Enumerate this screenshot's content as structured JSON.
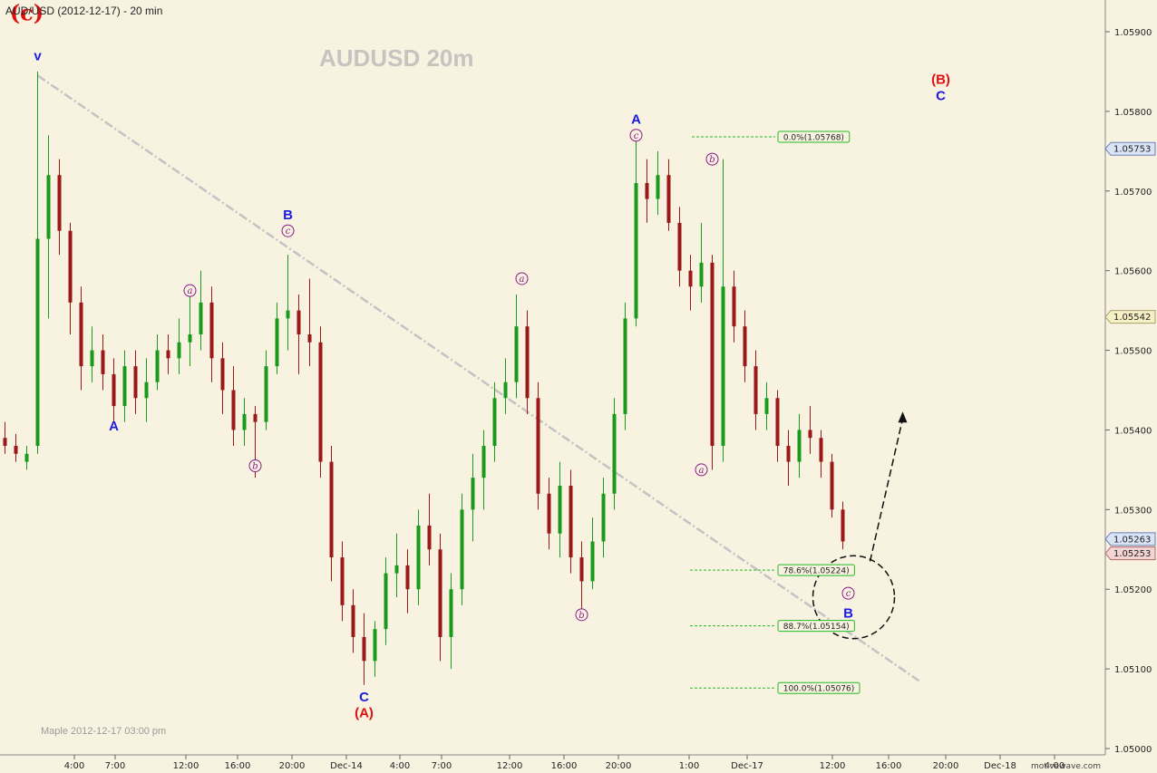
{
  "header": {
    "title": "AUD/USD (2012-12-17) - 20 min"
  },
  "watermark": "AUDUSD  20m",
  "footer_note": "Maple  2012-12-17  03:00 pm",
  "brand": "motivewave.com",
  "colors": {
    "background": "#f8f2e1",
    "bull": "#1a9a1a",
    "bear": "#9a1818",
    "trendline": "#c3c3c3",
    "fib": "#22bb22",
    "wave_blue": "#1c1ce0",
    "wave_red": "#e01010",
    "wave_purple": "#8b1a89"
  },
  "chart_data": {
    "type": "candlestick",
    "instrument": "AUD/USD",
    "timeframe": "20 min",
    "ylim": [
      1.05,
      1.0595
    ],
    "y_ticks": [
      "1.05900",
      "1.05800",
      "1.05700",
      "1.05600",
      "1.05500",
      "1.05400",
      "1.05300",
      "1.05200",
      "1.05100",
      "1.05000"
    ],
    "x_ticks": [
      "4:00",
      "7:00",
      "12:00",
      "16:00",
      "20:00",
      "Dec-14",
      "4:00",
      "7:00",
      "12:00",
      "16:00",
      "20:00",
      "1:00",
      "Dec-17",
      "12:00",
      "16:00",
      "20:00",
      "Dec-18",
      "4:00"
    ],
    "price_tags": [
      {
        "label": "1.05753",
        "value": 1.05753,
        "style": "blue"
      },
      {
        "label": "1.05542",
        "value": 1.05542,
        "style": "yellow"
      },
      {
        "label": "1.05263",
        "value": 1.05263,
        "style": "blue"
      },
      {
        "label": "1.05253",
        "value": 1.05253,
        "style": "red"
      }
    ],
    "fib_levels": [
      {
        "label": "0.0%(1.05768)",
        "value": 1.05768
      },
      {
        "label": "78.6%(1.05224)",
        "value": 1.05224
      },
      {
        "label": "88.7%(1.05154)",
        "value": 1.05154
      },
      {
        "label": "100.0%(1.05076)",
        "value": 1.05076
      }
    ],
    "wave_labels": [
      {
        "text": "(c)",
        "style": "red-big",
        "x": 2,
        "y": 1.0592
      },
      {
        "text": "v",
        "style": "blue",
        "x": 3,
        "y": 1.0587
      },
      {
        "text": "A",
        "style": "blue",
        "x": 10,
        "y": 1.05405
      },
      {
        "text": "a",
        "style": "circle",
        "x": 17,
        "y": 1.05575
      },
      {
        "text": "b",
        "style": "circle",
        "x": 23,
        "y": 1.05355
      },
      {
        "text": "B",
        "style": "blue",
        "x": 26,
        "y": 1.0567
      },
      {
        "text": "c",
        "style": "circle",
        "x": 26,
        "y": 1.0565
      },
      {
        "text": "C",
        "style": "blue",
        "x": 33,
        "y": 1.05065
      },
      {
        "text": "(A)",
        "style": "red",
        "x": 33,
        "y": 1.05045
      },
      {
        "text": "a",
        "style": "circle",
        "x": 47.5,
        "y": 1.0559
      },
      {
        "text": "b",
        "style": "circle",
        "x": 53,
        "y": 1.05168
      },
      {
        "text": "A",
        "style": "blue",
        "x": 58,
        "y": 1.0579
      },
      {
        "text": "c",
        "style": "circle",
        "x": 58,
        "y": 1.0577
      },
      {
        "text": "b",
        "style": "circle",
        "x": 65,
        "y": 1.0574
      },
      {
        "text": "a",
        "style": "circle",
        "x": 64,
        "y": 1.0535
      },
      {
        "text": "(B)",
        "style": "red",
        "x": 86,
        "y": 1.0584
      },
      {
        "text": "C",
        "style": "blue",
        "x": 86,
        "y": 1.0582
      },
      {
        "text": "c",
        "style": "circle",
        "x": 77.5,
        "y": 1.05195
      },
      {
        "text": "B",
        "style": "blue",
        "x": 77.5,
        "y": 1.0517
      }
    ],
    "trendline": {
      "from": {
        "x": 3,
        "y": 1.05845
      },
      "to": {
        "x": 84,
        "y": 1.05085
      }
    },
    "projection_arrow": {
      "from": {
        "x": 79.5,
        "y": 1.05235
      },
      "to": {
        "x": 82.5,
        "y": 1.05423
      }
    },
    "target_circle": {
      "cx": 78,
      "cy": 1.0519,
      "rx": 3.75,
      "ry": 0.00052
    },
    "candles": [
      {
        "o": 1.0539,
        "h": 1.0541,
        "l": 1.0537,
        "c": 1.0538
      },
      {
        "o": 1.0538,
        "h": 1.05395,
        "l": 1.0536,
        "c": 1.0537
      },
      {
        "o": 1.0536,
        "h": 1.0538,
        "l": 1.0535,
        "c": 1.0537
      },
      {
        "o": 1.0538,
        "h": 1.0585,
        "l": 1.0537,
        "c": 1.0564
      },
      {
        "o": 1.0564,
        "h": 1.0577,
        "l": 1.0554,
        "c": 1.0572
      },
      {
        "o": 1.0572,
        "h": 1.0574,
        "l": 1.0562,
        "c": 1.0565
      },
      {
        "o": 1.0565,
        "h": 1.0566,
        "l": 1.0552,
        "c": 1.0556
      },
      {
        "o": 1.0556,
        "h": 1.0558,
        "l": 1.0545,
        "c": 1.0548
      },
      {
        "o": 1.0548,
        "h": 1.0553,
        "l": 1.0546,
        "c": 1.055
      },
      {
        "o": 1.055,
        "h": 1.0552,
        "l": 1.0545,
        "c": 1.0547
      },
      {
        "o": 1.0547,
        "h": 1.0549,
        "l": 1.0541,
        "c": 1.0543
      },
      {
        "o": 1.0543,
        "h": 1.055,
        "l": 1.0541,
        "c": 1.0548
      },
      {
        "o": 1.0548,
        "h": 1.055,
        "l": 1.0542,
        "c": 1.0544
      },
      {
        "o": 1.0544,
        "h": 1.0549,
        "l": 1.0541,
        "c": 1.0546
      },
      {
        "o": 1.0546,
        "h": 1.0552,
        "l": 1.0545,
        "c": 1.055
      },
      {
        "o": 1.055,
        "h": 1.0552,
        "l": 1.0547,
        "c": 1.0549
      },
      {
        "o": 1.0549,
        "h": 1.0554,
        "l": 1.0547,
        "c": 1.0551
      },
      {
        "o": 1.0551,
        "h": 1.0557,
        "l": 1.0548,
        "c": 1.0552
      },
      {
        "o": 1.0552,
        "h": 1.056,
        "l": 1.055,
        "c": 1.0556
      },
      {
        "o": 1.0556,
        "h": 1.0558,
        "l": 1.0546,
        "c": 1.0549
      },
      {
        "o": 1.0549,
        "h": 1.0551,
        "l": 1.0542,
        "c": 1.0545
      },
      {
        "o": 1.0545,
        "h": 1.0548,
        "l": 1.0538,
        "c": 1.054
      },
      {
        "o": 1.054,
        "h": 1.0544,
        "l": 1.0538,
        "c": 1.0542
      },
      {
        "o": 1.0542,
        "h": 1.0543,
        "l": 1.0534,
        "c": 1.0541
      },
      {
        "o": 1.0541,
        "h": 1.055,
        "l": 1.054,
        "c": 1.0548
      },
      {
        "o": 1.0548,
        "h": 1.0556,
        "l": 1.0547,
        "c": 1.0554
      },
      {
        "o": 1.0554,
        "h": 1.0562,
        "l": 1.055,
        "c": 1.0555
      },
      {
        "o": 1.0555,
        "h": 1.0557,
        "l": 1.0547,
        "c": 1.0552
      },
      {
        "o": 1.0552,
        "h": 1.0559,
        "l": 1.0548,
        "c": 1.0551
      },
      {
        "o": 1.0551,
        "h": 1.0553,
        "l": 1.0534,
        "c": 1.0536
      },
      {
        "o": 1.0536,
        "h": 1.0538,
        "l": 1.0521,
        "c": 1.0524
      },
      {
        "o": 1.0524,
        "h": 1.0526,
        "l": 1.0516,
        "c": 1.0518
      },
      {
        "o": 1.0518,
        "h": 1.052,
        "l": 1.0512,
        "c": 1.0514
      },
      {
        "o": 1.0514,
        "h": 1.0517,
        "l": 1.0508,
        "c": 1.0511
      },
      {
        "o": 1.0511,
        "h": 1.0516,
        "l": 1.0509,
        "c": 1.0515
      },
      {
        "o": 1.0515,
        "h": 1.0524,
        "l": 1.0513,
        "c": 1.0522
      },
      {
        "o": 1.0522,
        "h": 1.0527,
        "l": 1.0519,
        "c": 1.0523
      },
      {
        "o": 1.0523,
        "h": 1.0525,
        "l": 1.0517,
        "c": 1.052
      },
      {
        "o": 1.052,
        "h": 1.053,
        "l": 1.0518,
        "c": 1.0528
      },
      {
        "o": 1.0528,
        "h": 1.0532,
        "l": 1.0523,
        "c": 1.0525
      },
      {
        "o": 1.0525,
        "h": 1.0527,
        "l": 1.0511,
        "c": 1.0514
      },
      {
        "o": 1.0514,
        "h": 1.0522,
        "l": 1.051,
        "c": 1.052
      },
      {
        "o": 1.052,
        "h": 1.0532,
        "l": 1.0518,
        "c": 1.053
      },
      {
        "o": 1.053,
        "h": 1.0537,
        "l": 1.0526,
        "c": 1.0534
      },
      {
        "o": 1.0534,
        "h": 1.054,
        "l": 1.053,
        "c": 1.0538
      },
      {
        "o": 1.0538,
        "h": 1.0546,
        "l": 1.0536,
        "c": 1.0544
      },
      {
        "o": 1.0544,
        "h": 1.0549,
        "l": 1.0542,
        "c": 1.0546
      },
      {
        "o": 1.0546,
        "h": 1.0557,
        "l": 1.0544,
        "c": 1.0553
      },
      {
        "o": 1.0553,
        "h": 1.0555,
        "l": 1.0542,
        "c": 1.0544
      },
      {
        "o": 1.0544,
        "h": 1.0546,
        "l": 1.053,
        "c": 1.0532
      },
      {
        "o": 1.0532,
        "h": 1.0534,
        "l": 1.0525,
        "c": 1.0527
      },
      {
        "o": 1.0527,
        "h": 1.0536,
        "l": 1.0524,
        "c": 1.0533
      },
      {
        "o": 1.0533,
        "h": 1.0535,
        "l": 1.0522,
        "c": 1.0524
      },
      {
        "o": 1.0524,
        "h": 1.0526,
        "l": 1.0517,
        "c": 1.0521
      },
      {
        "o": 1.0521,
        "h": 1.0529,
        "l": 1.052,
        "c": 1.0526
      },
      {
        "o": 1.0526,
        "h": 1.0534,
        "l": 1.0524,
        "c": 1.0532
      },
      {
        "o": 1.0532,
        "h": 1.0544,
        "l": 1.053,
        "c": 1.0542
      },
      {
        "o": 1.0542,
        "h": 1.0556,
        "l": 1.054,
        "c": 1.0554
      },
      {
        "o": 1.0554,
        "h": 1.0577,
        "l": 1.0553,
        "c": 1.0571
      },
      {
        "o": 1.0571,
        "h": 1.0574,
        "l": 1.0566,
        "c": 1.0569
      },
      {
        "o": 1.0569,
        "h": 1.0575,
        "l": 1.0567,
        "c": 1.0572
      },
      {
        "o": 1.0572,
        "h": 1.0574,
        "l": 1.0565,
        "c": 1.0566
      },
      {
        "o": 1.0566,
        "h": 1.0568,
        "l": 1.0558,
        "c": 1.056
      },
      {
        "o": 1.056,
        "h": 1.0562,
        "l": 1.0555,
        "c": 1.0558
      },
      {
        "o": 1.0558,
        "h": 1.0566,
        "l": 1.0556,
        "c": 1.0561
      },
      {
        "o": 1.0561,
        "h": 1.0562,
        "l": 1.0535,
        "c": 1.0538
      },
      {
        "o": 1.0538,
        "h": 1.0574,
        "l": 1.0536,
        "c": 1.0558
      },
      {
        "o": 1.0558,
        "h": 1.056,
        "l": 1.0551,
        "c": 1.0553
      },
      {
        "o": 1.0553,
        "h": 1.0555,
        "l": 1.0546,
        "c": 1.0548
      },
      {
        "o": 1.0548,
        "h": 1.055,
        "l": 1.054,
        "c": 1.0542
      },
      {
        "o": 1.0542,
        "h": 1.0546,
        "l": 1.054,
        "c": 1.0544
      },
      {
        "o": 1.0544,
        "h": 1.0545,
        "l": 1.0536,
        "c": 1.0538
      },
      {
        "o": 1.0538,
        "h": 1.054,
        "l": 1.0533,
        "c": 1.0536
      },
      {
        "o": 1.0536,
        "h": 1.0542,
        "l": 1.0534,
        "c": 1.054
      },
      {
        "o": 1.054,
        "h": 1.0543,
        "l": 1.0537,
        "c": 1.0539
      },
      {
        "o": 1.0539,
        "h": 1.054,
        "l": 1.0534,
        "c": 1.0536
      },
      {
        "o": 1.0536,
        "h": 1.0537,
        "l": 1.0529,
        "c": 1.053
      },
      {
        "o": 1.053,
        "h": 1.0531,
        "l": 1.0525,
        "c": 1.0526
      }
    ]
  }
}
